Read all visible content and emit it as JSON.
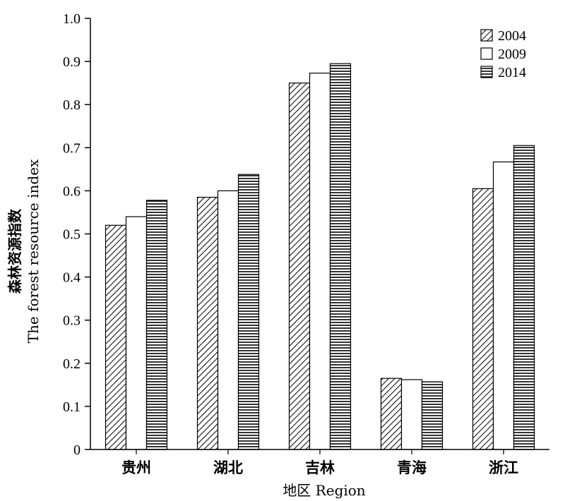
{
  "chart_data": {
    "type": "bar",
    "categories": [
      "贵州",
      "湖北",
      "吉林",
      "青海",
      "浙江"
    ],
    "series": [
      {
        "name": "2004",
        "pattern": "diagonal-hatch",
        "values": [
          0.52,
          0.585,
          0.85,
          0.165,
          0.605
        ]
      },
      {
        "name": "2009",
        "pattern": "white",
        "values": [
          0.54,
          0.6,
          0.873,
          0.162,
          0.667
        ]
      },
      {
        "name": "2014",
        "pattern": "horizontal-hatch",
        "values": [
          0.578,
          0.638,
          0.895,
          0.157,
          0.705
        ]
      }
    ],
    "xlabel": "地区 Region",
    "ylabel": "森林资源指数",
    "ylabel_en": "The forest resource index",
    "ylim": [
      0,
      1.0
    ],
    "yticks": [
      0,
      0.1,
      0.2,
      0.3,
      0.4,
      0.5,
      0.6,
      0.7,
      0.8,
      0.9,
      1.0
    ],
    "ytick_labels": [
      "0",
      "0.1",
      "0.2",
      "0.3",
      "0.4",
      "0.5",
      "0.6",
      "0.7",
      "0.8",
      "0.9",
      "1.0"
    ],
    "grid": false,
    "legend_position": "top-right"
  }
}
